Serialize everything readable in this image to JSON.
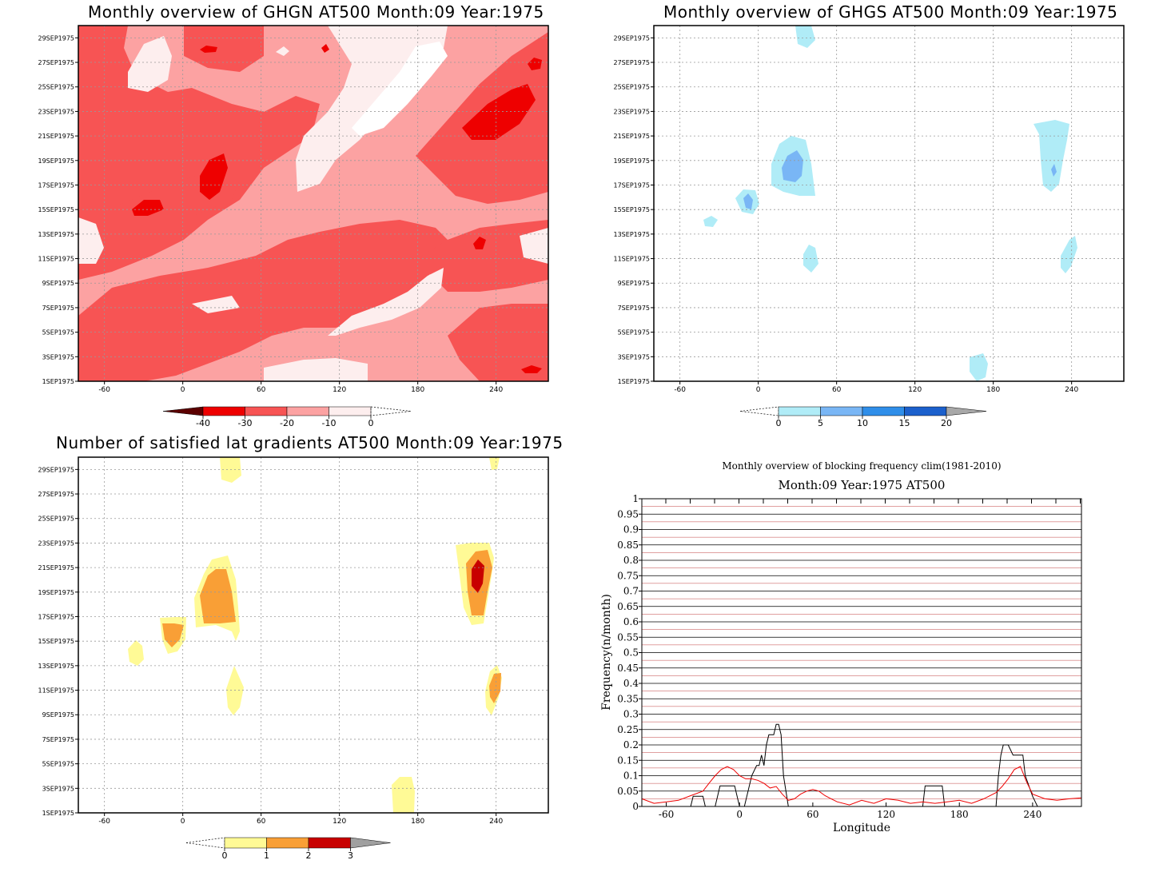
{
  "panels": {
    "ghgn": {
      "title": "Monthly overview of GHGN AT500 Month:09 Year:1975"
    },
    "ghgs": {
      "title": "Monthly overview of GHGS AT500 Month:09 Year:1975"
    },
    "grad": {
      "title": "Number of satisfied lat gradients AT500 Month:09 Year:1975"
    },
    "freq": {
      "title": "Monthly overview of blocking frequency clim(1981-2010)",
      "subtitle": "Month:09 Year:1975  AT500",
      "ylabel": "Frequency(n/month)",
      "xlabel": "Longitude"
    }
  },
  "chart_data": [
    {
      "type": "heatmap",
      "title": "Monthly overview of GHGN AT500 Month:09 Year:1975",
      "x_ticks": [
        "-60",
        "0",
        "60",
        "120",
        "180",
        "240"
      ],
      "y_ticks": [
        "1SEP1975",
        "3SEP1975",
        "5SEP1975",
        "7SEP1975",
        "9SEP1975",
        "11SEP1975",
        "13SEP1975",
        "15SEP1975",
        "17SEP1975",
        "19SEP1975",
        "21SEP1975",
        "23SEP1975",
        "25SEP1975",
        "27SEP1975",
        "29SEP1975"
      ],
      "xlim": [
        -80,
        280
      ],
      "colorbar": {
        "labels": [
          "-40",
          "-30",
          "-20",
          "-10",
          "0"
        ],
        "colors": [
          "#5c0000",
          "#ee0000",
          "#f75454",
          "#fca2a2",
          "#fdeeee"
        ]
      },
      "grid": true
    },
    {
      "type": "heatmap",
      "title": "Monthly overview of GHGS AT500 Month:09 Year:1975",
      "x_ticks": [
        "-60",
        "0",
        "60",
        "120",
        "180",
        "240"
      ],
      "y_ticks": [
        "1SEP1975",
        "3SEP1975",
        "5SEP1975",
        "7SEP1975",
        "9SEP1975",
        "11SEP1975",
        "13SEP1975",
        "15SEP1975",
        "17SEP1975",
        "19SEP1975",
        "21SEP1975",
        "23SEP1975",
        "25SEP1975",
        "27SEP1975",
        "29SEP1975"
      ],
      "xlim": [
        -80,
        280
      ],
      "colorbar": {
        "labels": [
          "0",
          "5",
          "10",
          "15",
          "20"
        ],
        "colors": [
          "#b0ecf7",
          "#79b6f5",
          "#2f8ee9",
          "#1c60cc",
          "#a8a8a8"
        ]
      },
      "grid": true
    },
    {
      "type": "heatmap",
      "title": "Number of satisfied lat gradients AT500 Month:09 Year:1975",
      "x_ticks": [
        "-60",
        "0",
        "60",
        "120",
        "180",
        "240"
      ],
      "y_ticks": [
        "1SEP1975",
        "3SEP1975",
        "5SEP1975",
        "7SEP1975",
        "9SEP1975",
        "11SEP1975",
        "13SEP1975",
        "15SEP1975",
        "17SEP1975",
        "19SEP1975",
        "21SEP1975",
        "23SEP1975",
        "25SEP1975",
        "27SEP1975",
        "29SEP1975"
      ],
      "xlim": [
        -80,
        280
      ],
      "colorbar": {
        "labels": [
          "0",
          "1",
          "2",
          "3"
        ],
        "colors": [
          "#fffa96",
          "#f99f36",
          "#c80000",
          "#a0a0a0"
        ]
      },
      "grid": true
    },
    {
      "type": "line",
      "title": "Monthly overview of blocking frequency clim(1981-2010)",
      "subtitle": "Month:09 Year:1975  AT500",
      "xlabel": "Longitude",
      "ylabel": "Frequency(n/month)",
      "xlim": [
        -80,
        280
      ],
      "ylim": [
        0,
        1
      ],
      "x_ticks": [
        "-60",
        "0",
        "60",
        "120",
        "180",
        "240"
      ],
      "y_ticks": [
        "0",
        "0.05",
        "0.1",
        "0.15",
        "0.2",
        "0.25",
        "0.3",
        "0.35",
        "0.4",
        "0.45",
        "0.5",
        "0.55",
        "0.6",
        "0.65",
        "0.7",
        "0.75",
        "0.8",
        "0.85",
        "0.9",
        "0.95",
        "1"
      ],
      "series": [
        {
          "color": "#000000",
          "x": [
            -80,
            -40,
            -38,
            -30,
            -28,
            -20,
            -16,
            -4,
            0,
            4,
            10,
            14,
            16,
            18,
            20,
            22,
            24,
            26,
            28,
            30,
            32,
            34,
            36,
            40,
            42,
            44,
            150,
            152,
            166,
            168,
            210,
            212,
            214,
            216,
            218,
            220,
            224,
            226,
            232,
            234,
            240,
            244,
            280
          ],
          "y": [
            0,
            0,
            0.033,
            0.033,
            0,
            0,
            0.067,
            0.067,
            0,
            0,
            0.1,
            0.133,
            0.133,
            0.167,
            0.133,
            0.2,
            0.233,
            0.233,
            0.233,
            0.267,
            0.267,
            0.233,
            0.1,
            0,
            0,
            0,
            0,
            0.067,
            0.067,
            0,
            0,
            0.1,
            0.167,
            0.2,
            0.2,
            0.2,
            0.167,
            0.167,
            0.167,
            0.1,
            0.033,
            0,
            0
          ]
        },
        {
          "color": "#ee0000",
          "x": [
            -80,
            -70,
            -60,
            -50,
            -40,
            -30,
            -25,
            -20,
            -15,
            -10,
            -5,
            0,
            5,
            10,
            15,
            20,
            25,
            30,
            35,
            40,
            45,
            50,
            55,
            60,
            65,
            70,
            75,
            80,
            90,
            100,
            110,
            120,
            130,
            140,
            150,
            160,
            170,
            180,
            190,
            200,
            210,
            215,
            220,
            225,
            230,
            235,
            240,
            250,
            260,
            270,
            280
          ],
          "y": [
            0.025,
            0.01,
            0.015,
            0.02,
            0.035,
            0.05,
            0.075,
            0.1,
            0.12,
            0.13,
            0.12,
            0.1,
            0.09,
            0.09,
            0.085,
            0.075,
            0.06,
            0.065,
            0.04,
            0.02,
            0.025,
            0.04,
            0.05,
            0.055,
            0.05,
            0.035,
            0.025,
            0.015,
            0.005,
            0.02,
            0.01,
            0.025,
            0.02,
            0.01,
            0.015,
            0.01,
            0.015,
            0.02,
            0.01,
            0.025,
            0.045,
            0.065,
            0.09,
            0.12,
            0.13,
            0.08,
            0.04,
            0.025,
            0.02,
            0.025,
            0.028
          ]
        }
      ],
      "grid": true
    }
  ]
}
